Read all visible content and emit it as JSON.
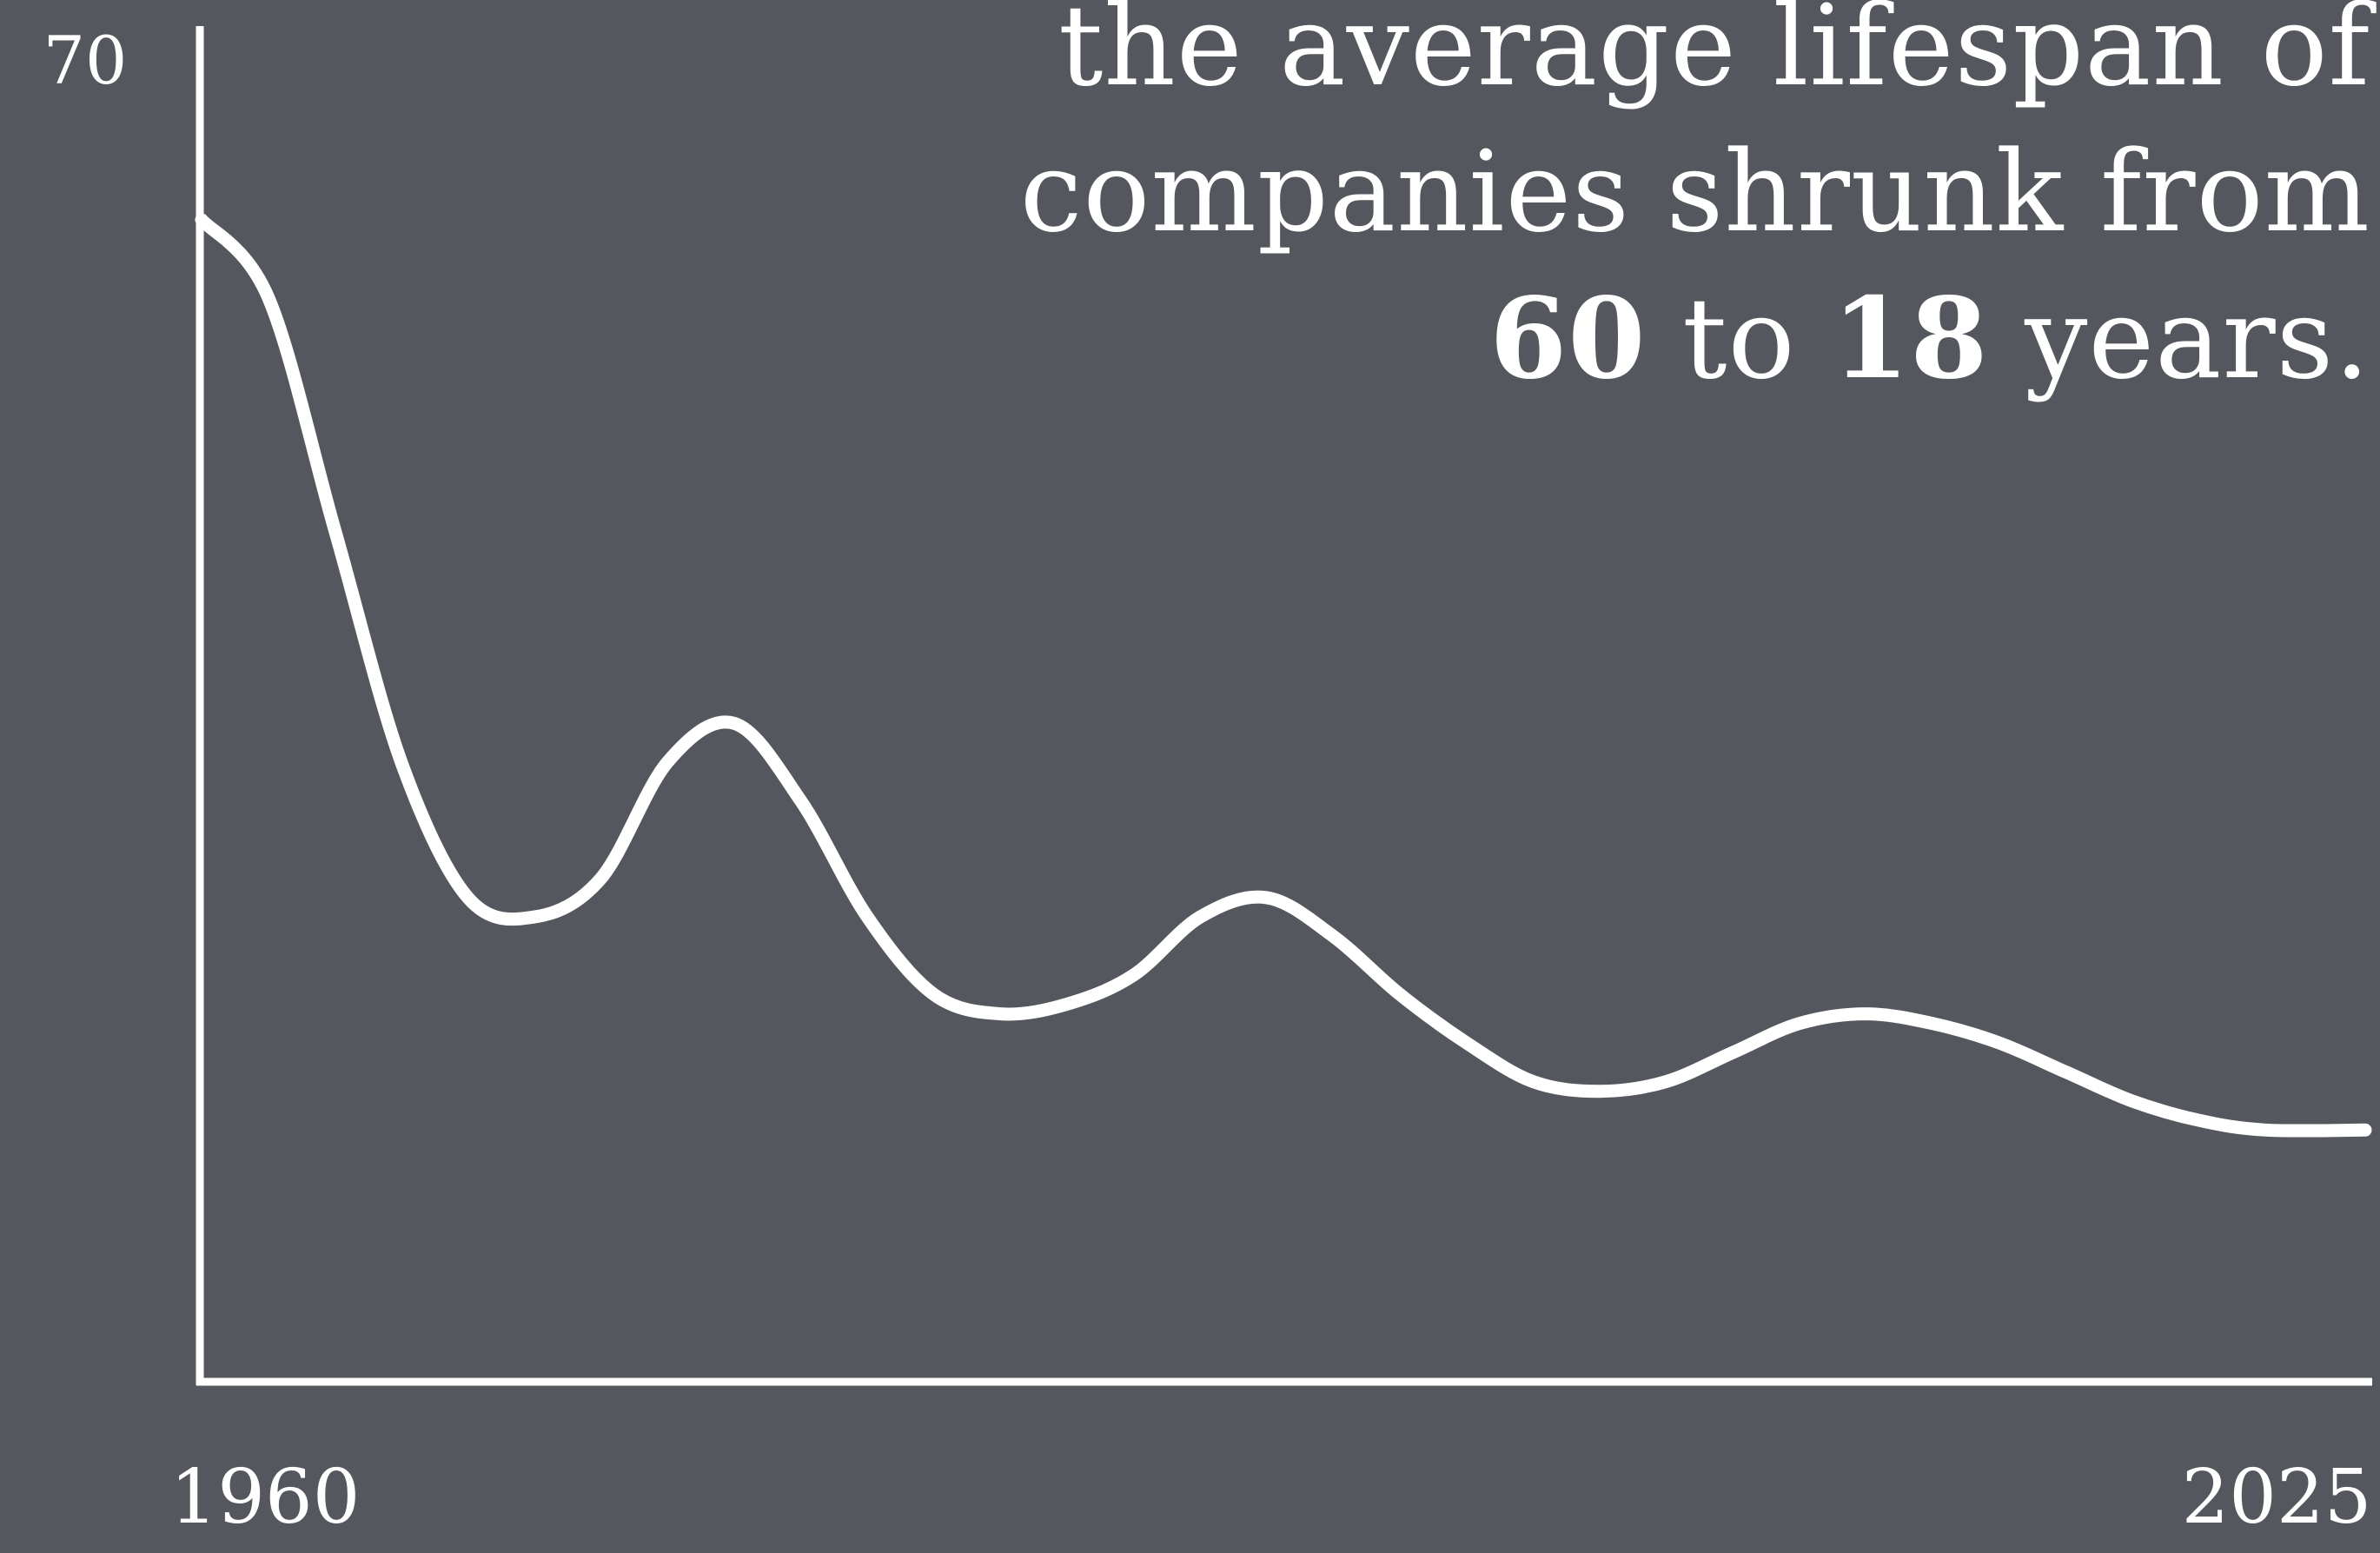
{
  "colors": {
    "background": "#54575d",
    "foreground": "#ffffff"
  },
  "headline": {
    "line1": "the average lifespan of",
    "line2": "companies shrunk from",
    "line3_start_value": "60",
    "line3_connector": " to ",
    "line3_end_value": "18",
    "line3_suffix": " years."
  },
  "chart_data": {
    "type": "line",
    "title": "",
    "xlabel": "",
    "ylabel": "",
    "grid": false,
    "y_tick_labels": [
      "70"
    ],
    "x_tick_labels": [
      "1960",
      "2025"
    ],
    "xlim": [
      1960,
      2025
    ],
    "ylim": [
      0,
      70
    ],
    "series": [
      {
        "x": [
          1960,
          1962,
          1964,
          1966,
          1968,
          1970,
          1972,
          1974,
          1976,
          1978,
          1980,
          1982,
          1984,
          1986,
          1988,
          1990,
          1992,
          1994,
          1996,
          1998,
          2000,
          2002,
          2004,
          2006,
          2008,
          2010,
          2012,
          2014,
          2016,
          2018,
          2020,
          2022,
          2025
        ],
        "y": [
          60,
          56,
          44,
          32,
          25,
          24,
          26,
          32,
          34,
          30,
          24,
          20,
          19,
          19.5,
          21,
          24,
          25,
          23,
          20,
          17.5,
          15.5,
          15,
          15.5,
          17,
          18.5,
          19,
          18.5,
          17.5,
          16,
          14.5,
          13.5,
          13,
          13
        ]
      }
    ]
  }
}
